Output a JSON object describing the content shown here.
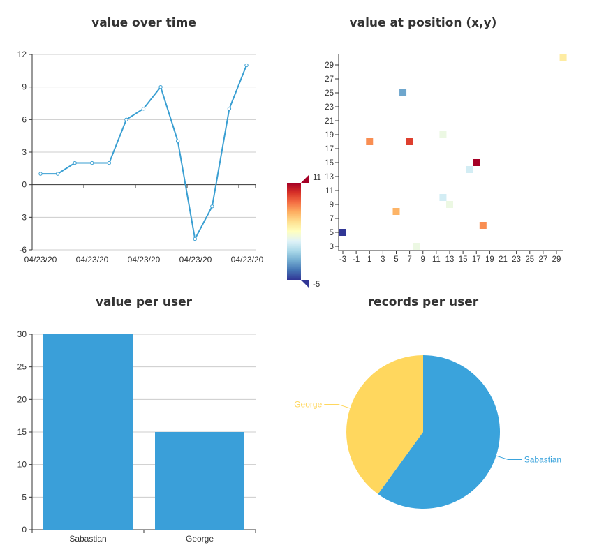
{
  "chart_data": [
    {
      "type": "line",
      "title": "value over time",
      "x_tick_labels": [
        "04/23/20",
        "04/23/20",
        "04/23/20",
        "04/23/20",
        "04/23/20"
      ],
      "y_ticks": [
        -6,
        -3,
        0,
        3,
        6,
        9,
        12
      ],
      "ylim": [
        -6,
        12
      ],
      "values": [
        1,
        1,
        2,
        2,
        2,
        6,
        7,
        9,
        4,
        -5,
        -2,
        7,
        11
      ],
      "color": "#3a9fd2",
      "grid": true
    },
    {
      "type": "heatmap",
      "title": "value at position (x,y)",
      "x_ticks": [
        -3,
        -1,
        1,
        3,
        5,
        7,
        9,
        11,
        13,
        15,
        17,
        19,
        21,
        23,
        25,
        27,
        29
      ],
      "y_ticks": [
        3,
        5,
        7,
        9,
        11,
        13,
        15,
        17,
        19,
        21,
        23,
        25,
        27,
        29
      ],
      "xlim": [
        -3,
        31
      ],
      "ylim": [
        2.5,
        30.5
      ],
      "visual_map": {
        "min": -5,
        "max": 11,
        "min_label": "-5",
        "max_label": "11"
      },
      "points": [
        {
          "x": -3,
          "y": 5,
          "value": -5
        },
        {
          "x": 1,
          "y": 18,
          "value": 7
        },
        {
          "x": 5,
          "y": 8,
          "value": 6
        },
        {
          "x": 6,
          "y": 25,
          "value": -2
        },
        {
          "x": 7,
          "y": 18,
          "value": 9
        },
        {
          "x": 8,
          "y": 3,
          "value": 2
        },
        {
          "x": 12,
          "y": 19,
          "value": 2
        },
        {
          "x": 12,
          "y": 10,
          "value": 1
        },
        {
          "x": 13,
          "y": 9,
          "value": 2
        },
        {
          "x": 16,
          "y": 14,
          "value": 1
        },
        {
          "x": 17,
          "y": 15,
          "value": 11
        },
        {
          "x": 18,
          "y": 6,
          "value": 7
        },
        {
          "x": 30,
          "y": 30,
          "value": 4
        }
      ]
    },
    {
      "type": "bar",
      "title": "value per user",
      "categories": [
        "Sabastian",
        "George"
      ],
      "values": [
        30,
        15
      ],
      "y_ticks": [
        0,
        5,
        10,
        15,
        20,
        25,
        30
      ],
      "ylim": [
        0,
        30
      ],
      "color": "#3a9fd9",
      "grid": true
    },
    {
      "type": "pie",
      "title": "records per user",
      "slices": [
        {
          "label": "Sabastian",
          "value": 60,
          "color": "#3aa3dc"
        },
        {
          "label": "George",
          "value": 40,
          "color": "#ffd75e"
        }
      ]
    }
  ]
}
